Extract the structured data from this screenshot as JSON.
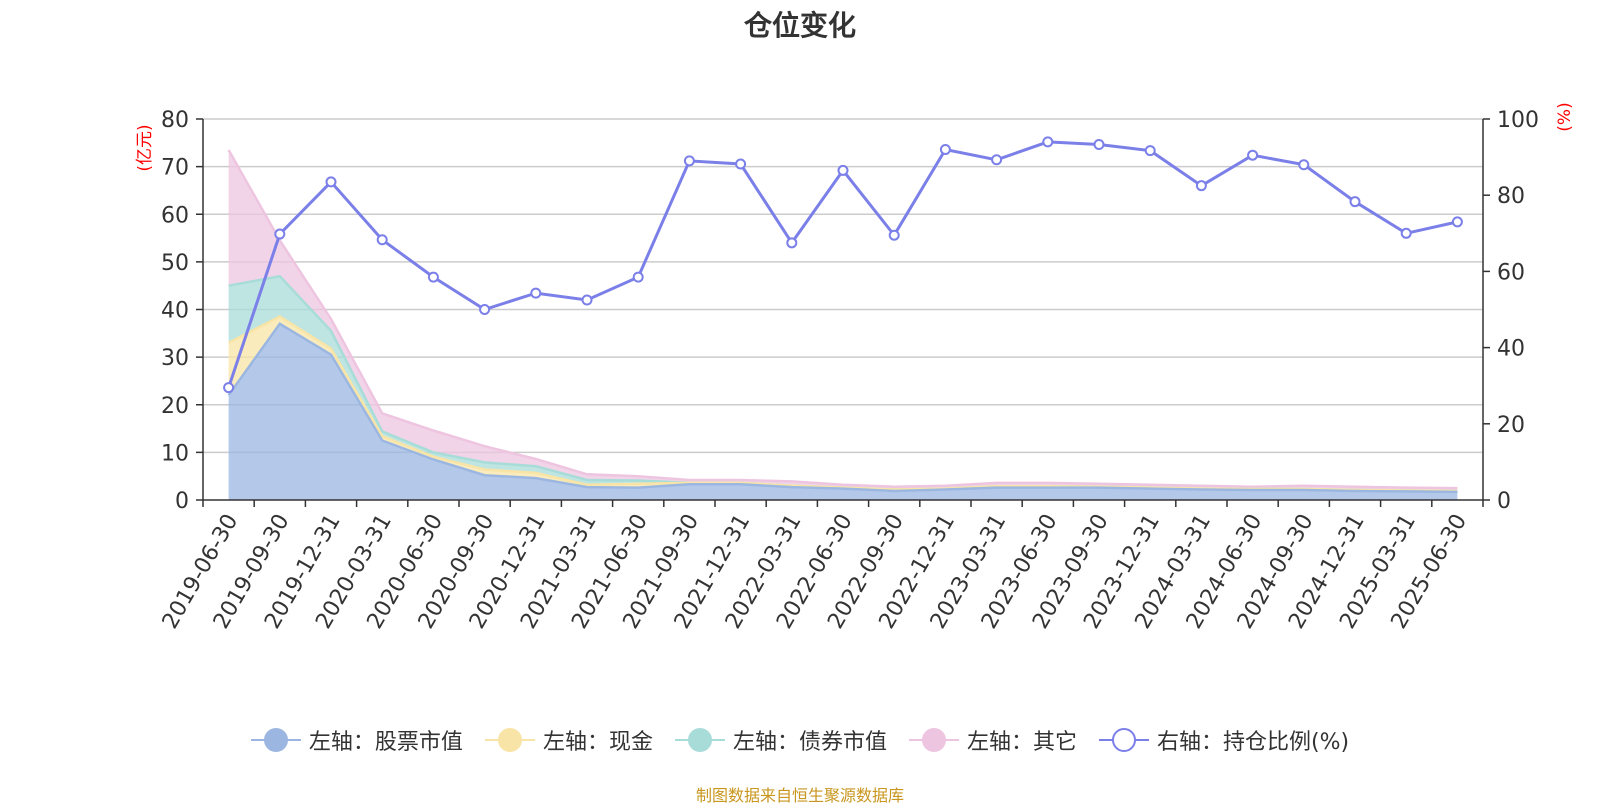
{
  "title": "仓位变化",
  "source": "制图数据来自恒生聚源数据库",
  "chart_data": {
    "type": "area",
    "title": "仓位变化",
    "x": [
      "2019-06-30",
      "2019-09-30",
      "2019-12-31",
      "2020-03-31",
      "2020-06-30",
      "2020-09-30",
      "2020-12-31",
      "2021-03-31",
      "2021-06-30",
      "2021-09-30",
      "2021-12-31",
      "2022-03-31",
      "2022-06-30",
      "2022-09-30",
      "2022-12-31",
      "2023-03-31",
      "2023-06-30",
      "2023-09-30",
      "2023-12-31",
      "2024-03-31",
      "2024-06-30",
      "2024-09-30",
      "2024-12-31",
      "2025-03-31",
      "2025-06-30"
    ],
    "y_left": {
      "unit": "(亿元)",
      "ylim": [
        0,
        80
      ],
      "ticks": [
        0,
        10,
        20,
        30,
        40,
        50,
        60,
        70,
        80
      ]
    },
    "y_right": {
      "unit": "(%)",
      "ylim": [
        0,
        100
      ],
      "ticks": [
        0,
        20,
        40,
        60,
        80,
        100
      ]
    },
    "grid": true,
    "legend_position": "bottom",
    "stacked_series": [
      {
        "name": "左轴：股票市值",
        "axis": "left",
        "color": "#9bb7e1",
        "values": [
          22.0,
          37.0,
          30.5,
          12.5,
          8.5,
          5.2,
          4.6,
          2.7,
          2.6,
          3.3,
          3.3,
          2.7,
          2.4,
          1.9,
          2.2,
          2.6,
          2.6,
          2.6,
          2.4,
          2.2,
          2.1,
          2.1,
          1.9,
          1.8,
          1.7
        ]
      },
      {
        "name": "左轴：现金",
        "axis": "left",
        "color": "#f8e4a6",
        "values": [
          11.0,
          1.5,
          1.3,
          0.9,
          0.6,
          1.2,
          1.1,
          0.5,
          0.8,
          0.3,
          0.3,
          0.3,
          0.2,
          0.3,
          0.2,
          0.3,
          0.3,
          0.2,
          0.2,
          0.2,
          0.2,
          0.2,
          0.2,
          0.2,
          0.2
        ]
      },
      {
        "name": "左轴：债券市值",
        "axis": "left",
        "color": "#a8dcd8",
        "values": [
          12.0,
          8.5,
          3.7,
          1.0,
          0.9,
          1.5,
          1.4,
          1.0,
          0.7,
          0,
          0,
          0,
          0,
          0,
          0,
          0,
          0,
          0,
          0,
          0,
          0,
          0,
          0,
          0,
          0
        ]
      },
      {
        "name": "左轴：其它",
        "axis": "left",
        "color": "#eec5e0",
        "values": [
          28.5,
          7.5,
          2.5,
          3.8,
          4.6,
          3.4,
          1.5,
          1.2,
          0.9,
          0.6,
          0.6,
          0.9,
          0.6,
          0.6,
          0.6,
          0.7,
          0.7,
          0.6,
          0.6,
          0.6,
          0.5,
          0.7,
          0.7,
          0.6,
          0.6
        ]
      }
    ],
    "line_series": {
      "name": "右轴：持仓比例(%)",
      "axis": "right",
      "color": "#7b7fe8",
      "values": [
        29.5,
        69.8,
        83.5,
        68.3,
        58.5,
        50.0,
        54.3,
        52.5,
        58.5,
        89.0,
        88.2,
        67.5,
        86.5,
        69.5,
        92.0,
        89.3,
        94.0,
        93.3,
        91.7,
        82.5,
        90.5,
        88.0,
        78.3,
        70.0,
        73.0
      ]
    }
  }
}
